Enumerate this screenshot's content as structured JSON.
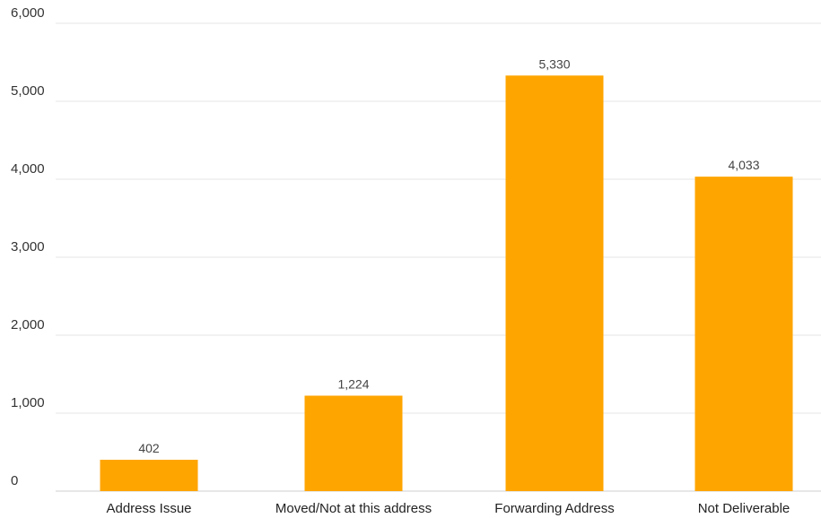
{
  "chart_data": {
    "type": "bar",
    "categories": [
      "Address Issue",
      "Moved/Not at this address",
      "Forwarding Address",
      "Not Deliverable"
    ],
    "values": [
      402,
      1224,
      5330,
      4033
    ],
    "value_labels": [
      "402",
      "1,224",
      "5,330",
      "4,033"
    ],
    "yticks": [
      0,
      1000,
      2000,
      3000,
      4000,
      5000,
      6000
    ],
    "ytick_labels": [
      "0",
      "1,000",
      "2,000",
      "3,000",
      "4,000",
      "5,000",
      "6,000"
    ],
    "ylim": [
      0,
      6000
    ],
    "title": "",
    "xlabel": "",
    "ylabel": "",
    "grid": true,
    "legend": "none",
    "colors": {
      "bar": "#FFA500",
      "grid": "#e6e6e6"
    }
  }
}
